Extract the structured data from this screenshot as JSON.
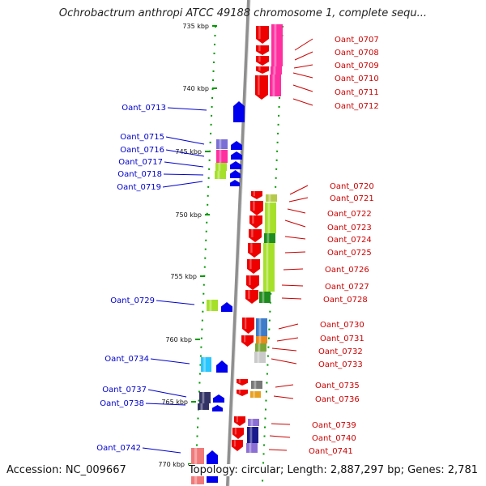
{
  "title": "Ochrobactrum anthropi ATCC 49188 chromosome 1, complete sequ...",
  "footer": {
    "accession": "Accession: NC_009667",
    "summary": "Topology: circular; Length: 2,887,297 bp; Genes: 2,781"
  },
  "colors": {
    "forward_label": "#cc0000",
    "reverse_label": "#0000cc",
    "backbone": "#999999",
    "tick": "#009900"
  },
  "ruler_ticks": [
    {
      "label": "735 kbp"
    },
    {
      "label": "740 kbp"
    },
    {
      "label": "745 kbp"
    },
    {
      "label": "750 kbp"
    },
    {
      "label": "755 kbp"
    },
    {
      "label": "760 kbp"
    },
    {
      "label": "765 kbp"
    },
    {
      "label": "770 kbp"
    }
  ],
  "forward_genes": [
    {
      "label": "Oant_0707"
    },
    {
      "label": "Oant_0708"
    },
    {
      "label": "Oant_0709"
    },
    {
      "label": "Oant_0710"
    },
    {
      "label": "Oant_0711"
    },
    {
      "label": "Oant_0712"
    },
    {
      "label": "Oant_0720"
    },
    {
      "label": "Oant_0721"
    },
    {
      "label": "Oant_0722"
    },
    {
      "label": "Oant_0723"
    },
    {
      "label": "Oant_0724"
    },
    {
      "label": "Oant_0725"
    },
    {
      "label": "Oant_0726"
    },
    {
      "label": "Oant_0727"
    },
    {
      "label": "Oant_0728"
    },
    {
      "label": "Oant_0730"
    },
    {
      "label": "Oant_0731"
    },
    {
      "label": "Oant_0732"
    },
    {
      "label": "Oant_0733"
    },
    {
      "label": "Oant_0735"
    },
    {
      "label": "Oant_0736"
    },
    {
      "label": "Oant_0739"
    },
    {
      "label": "Oant_0740"
    },
    {
      "label": "Oant_0741"
    }
  ],
  "reverse_genes": [
    {
      "label": "Oant_0713"
    },
    {
      "label": "Oant_0715"
    },
    {
      "label": "Oant_0716"
    },
    {
      "label": "Oant_0717"
    },
    {
      "label": "Oant_0718"
    },
    {
      "label": "Oant_0719"
    },
    {
      "label": "Oant_0729"
    },
    {
      "label": "Oant_0734"
    },
    {
      "label": "Oant_0737"
    },
    {
      "label": "Oant_0738"
    },
    {
      "label": "Oant_0742"
    }
  ]
}
